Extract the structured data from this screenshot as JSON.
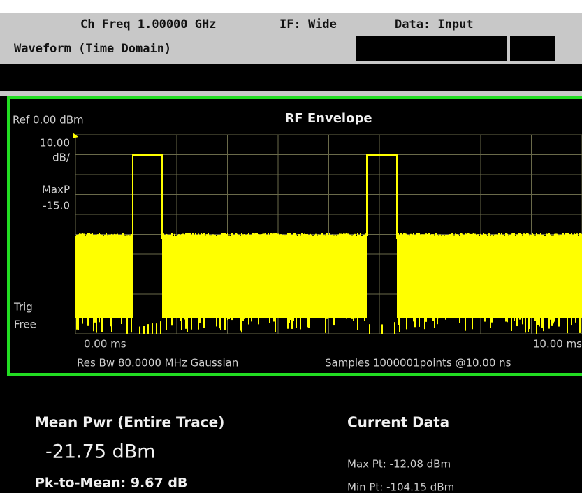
{
  "header": {
    "channel_freq": "Ch Freq 1.00000 GHz",
    "if_mode": "IF: Wide",
    "data_source": "Data: Input",
    "measurement": "Waveform (Time Domain)"
  },
  "screen": {
    "ref": "Ref 0.00 dBm",
    "title": "RF Envelope",
    "scale": "10.00",
    "scale_unit": "dB/",
    "det_label": "MaxP",
    "det_value": "-15.0",
    "trig_label": "Trig",
    "trig_mode": "Free",
    "x_start": "0.00 ms",
    "x_end": "10.00 ms",
    "res_bw": "Res Bw 80.0000 MHz Gaussian",
    "samples": "Samples 1000001points  @10.00 ns"
  },
  "results": {
    "mean_label": "Mean Pwr (Entire Trace)",
    "mean_value": "-21.75 dBm",
    "pk_to_mean": "Pk-to-Mean: 9.67 dB",
    "current_label": "Current Data",
    "max_pt": "Max Pt: -12.08 dBm",
    "min_pt": "Min Pt: -104.15 dBm"
  }
}
